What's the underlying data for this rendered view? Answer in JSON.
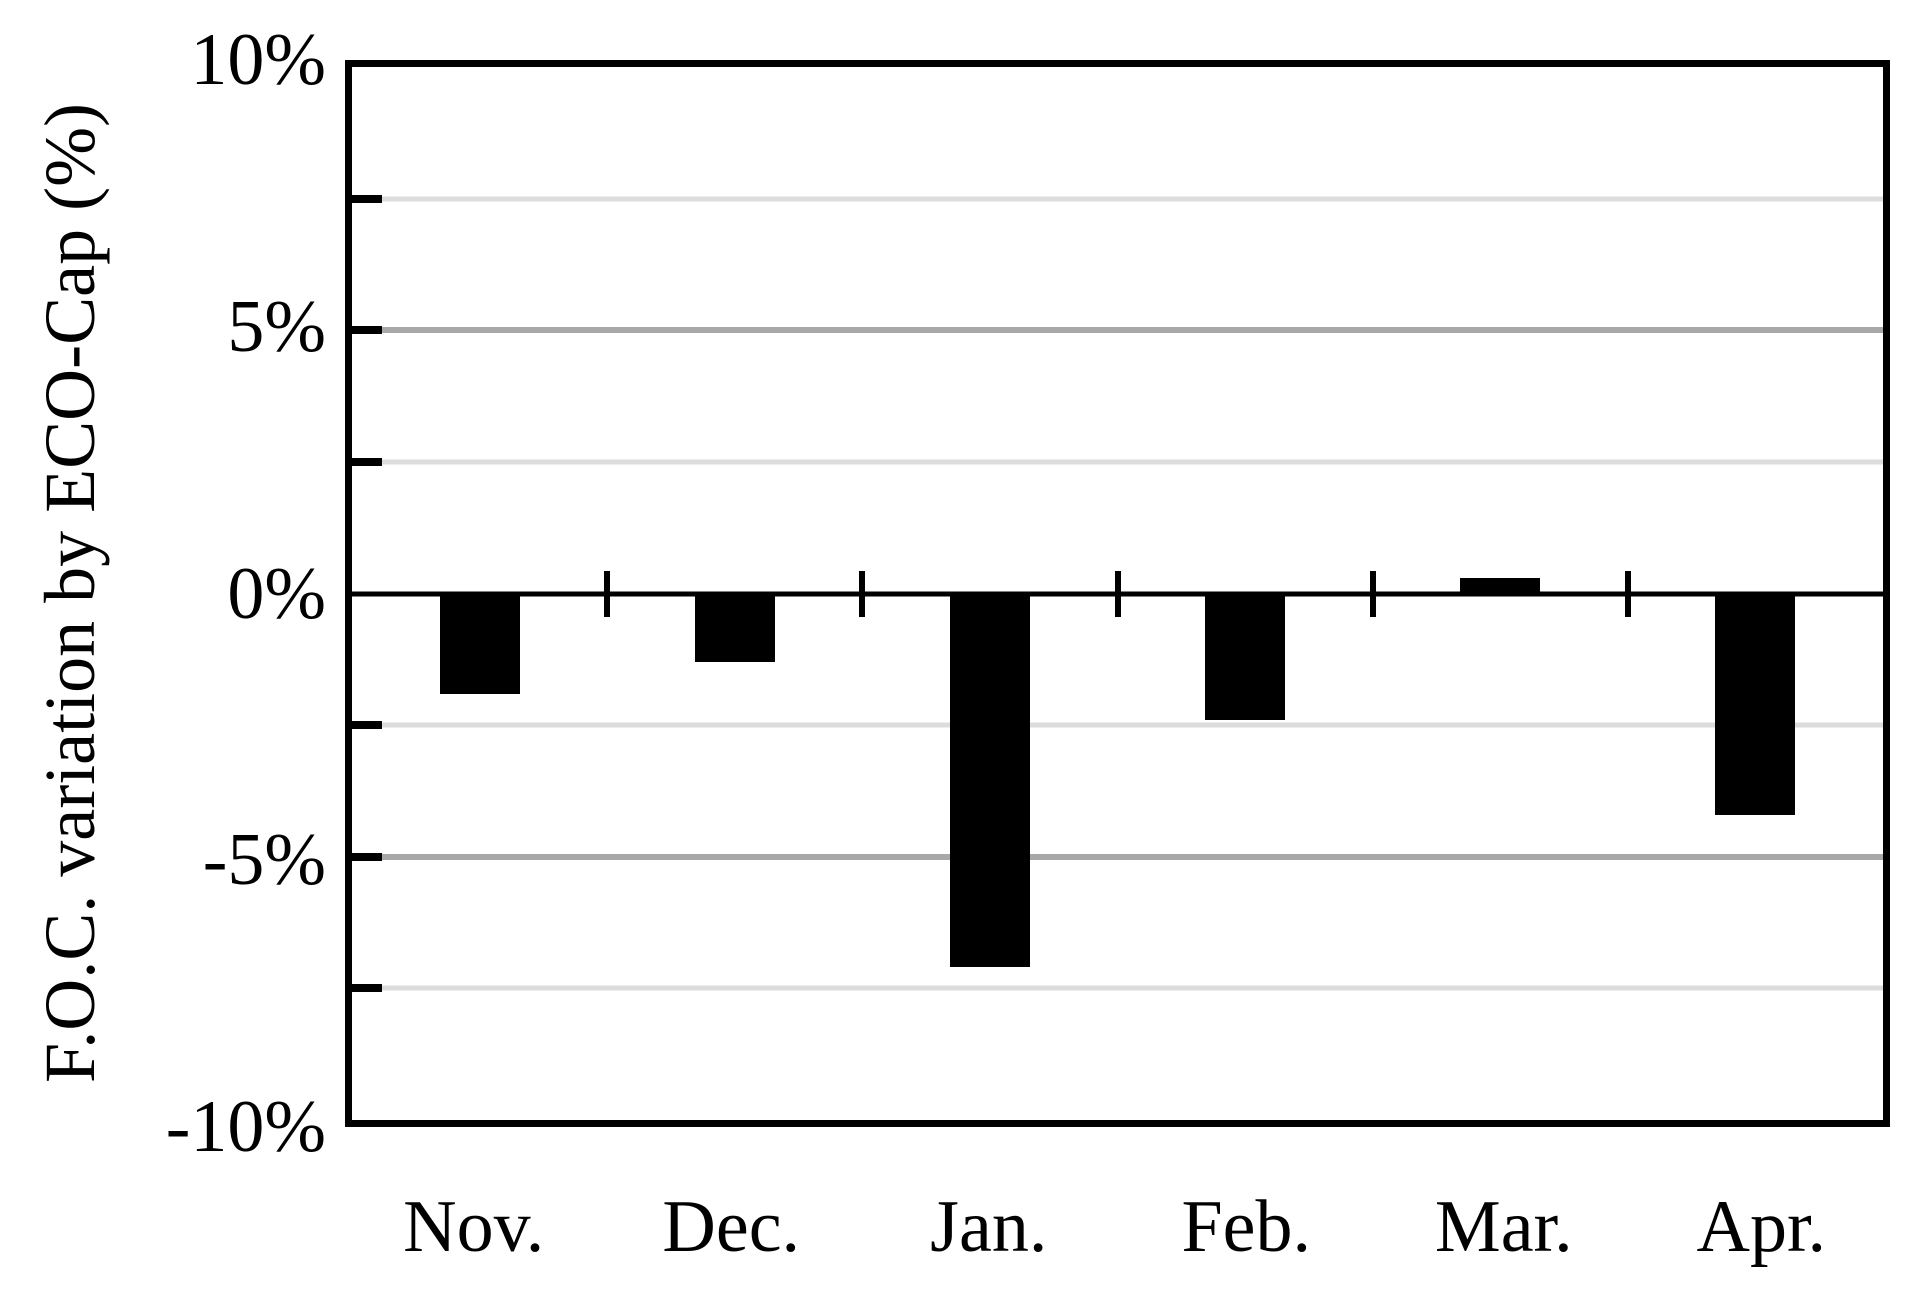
{
  "chart_data": {
    "type": "bar",
    "categories": [
      "Nov.",
      "Dec.",
      "Jan.",
      "Feb.",
      "Mar.",
      "Apr."
    ],
    "values": [
      -1.9,
      -1.3,
      -7.1,
      -2.4,
      0.3,
      -4.2
    ],
    "series_name": "F.O.C. variation",
    "title": "",
    "xlabel": "",
    "ylabel": "F.O.C. variation by ECO-Cap (%)",
    "ylim": [
      -10,
      10
    ],
    "y_ticks": [
      {
        "label": "10%",
        "value": 10
      },
      {
        "label": "5%",
        "value": 5
      },
      {
        "label": "0%",
        "value": 0
      },
      {
        "label": "-5%",
        "value": -5
      },
      {
        "label": "-10%",
        "value": -10
      }
    ],
    "gridlines": {
      "minor_values": [
        7.5,
        2.5,
        -2.5,
        -7.5
      ],
      "major_values": [
        5,
        -5
      ],
      "minor_color": "#dcdcdc",
      "major_color": "#a8a8a8"
    },
    "axis_nub_values": [
      7.5,
      5,
      2.5,
      -2.5,
      -5,
      -7.5
    ],
    "bar_color": "#000000",
    "axis_color": "#000000",
    "legend_position": "none",
    "grid": true
  }
}
